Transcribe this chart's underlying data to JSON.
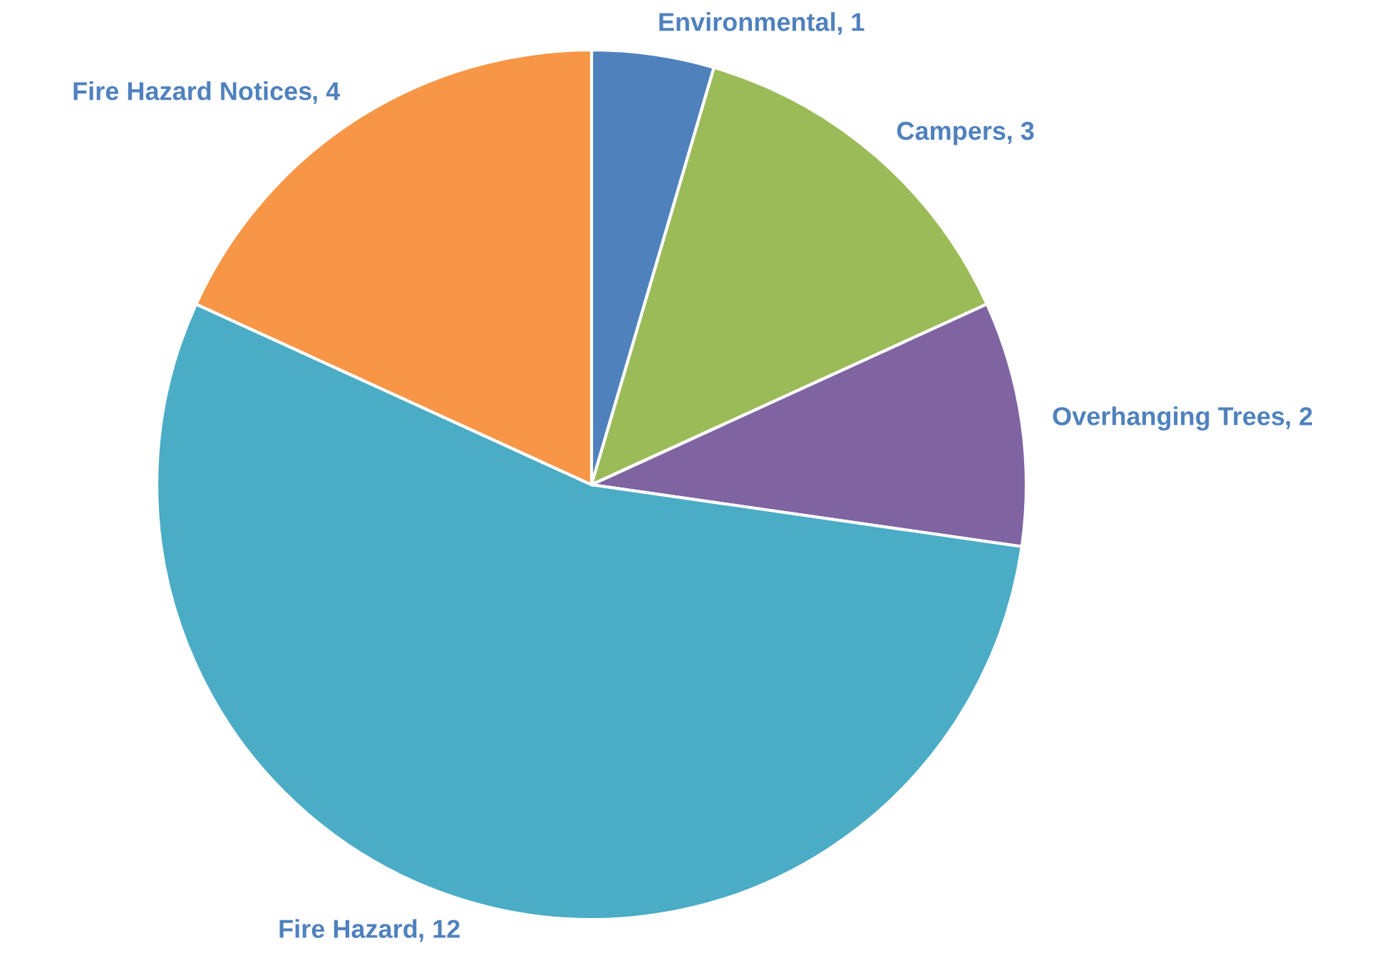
{
  "chart_data": {
    "type": "pie",
    "categories": [
      "Environmental",
      "Campers",
      "Overhanging Trees",
      "Fire Hazard",
      "Fire Hazard Notices"
    ],
    "values": [
      1,
      3,
      2,
      12,
      4
    ],
    "colors": [
      "#4f81bd",
      "#9bbb59",
      "#8064a2",
      "#4bacc6",
      "#f79646"
    ],
    "value_labels": [
      ", 1",
      ", 3",
      ", 2",
      ", 12",
      ", 4"
    ]
  }
}
